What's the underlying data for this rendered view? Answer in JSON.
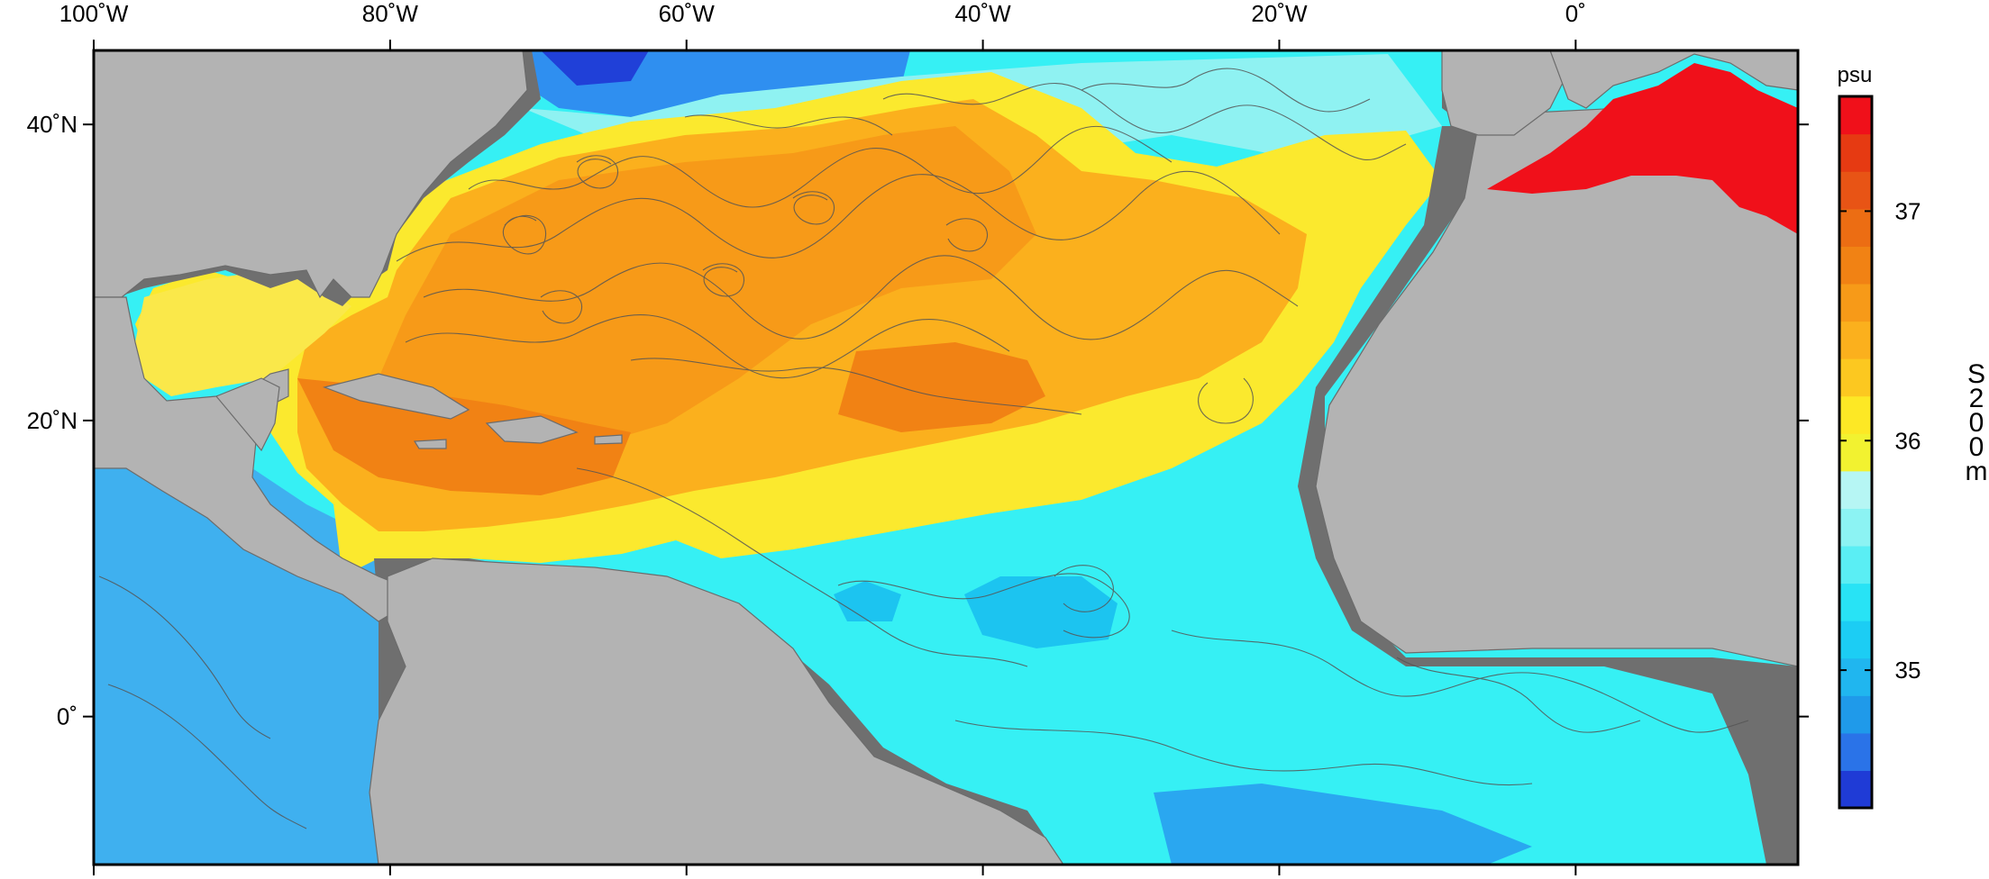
{
  "map": {
    "lon_ticks": [
      {
        "value": -100,
        "label": "100˚W"
      },
      {
        "value": -80,
        "label": "80˚W"
      },
      {
        "value": -60,
        "label": "60˚W"
      },
      {
        "value": -40,
        "label": "40˚W"
      },
      {
        "value": -20,
        "label": "20˚W"
      },
      {
        "value": 0,
        "label": "0˚"
      }
    ],
    "lat_ticks": [
      {
        "value": 40,
        "label": "40˚N"
      },
      {
        "value": 20,
        "label": "20˚N"
      },
      {
        "value": 0,
        "label": "0˚"
      }
    ],
    "extent": {
      "lon_min": -100,
      "lon_max": 15,
      "lat_min": -10,
      "lat_max": 45
    },
    "land_color": "#b3b3b3",
    "shelf_color": "#6f6f6f",
    "track_color": "#555555"
  },
  "colorbar": {
    "unit": "psu",
    "title_letters": [
      "S",
      "2",
      "0",
      "0",
      "m"
    ],
    "ticks": [
      {
        "value": 37,
        "label": "37"
      },
      {
        "value": 36,
        "label": "36"
      },
      {
        "value": 35,
        "label": "35"
      }
    ],
    "range": [
      34.4,
      37.5
    ],
    "colors": [
      "#1f3bd6",
      "#2a73e8",
      "#1f9aea",
      "#20b6ef",
      "#1ccdf4",
      "#28e3f5",
      "#5aeef4",
      "#8cf3f3",
      "#b6f6f4",
      "#f2f230",
      "#fde825",
      "#fcc820",
      "#fbb01d",
      "#f79a18",
      "#f18214",
      "#ec6d13",
      "#e85415",
      "#e63a12",
      "#f0101a"
    ]
  }
}
